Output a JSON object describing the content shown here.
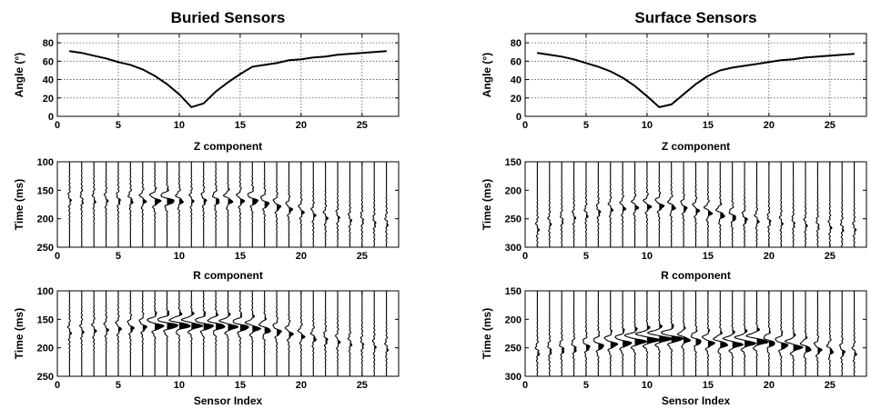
{
  "chart_data": [
    {
      "type": "line",
      "title": "Buried Sensors",
      "ylabel": "Angle (°)",
      "xlim": [
        0,
        28
      ],
      "ylim": [
        0,
        90
      ],
      "xticks": [
        0,
        5,
        10,
        15,
        20,
        25
      ],
      "yticks": [
        0,
        20,
        40,
        60,
        80
      ],
      "grid": true,
      "x": [
        1,
        2,
        3,
        4,
        5,
        6,
        7,
        8,
        9,
        10,
        11,
        12,
        13,
        14,
        15,
        16,
        17,
        18,
        19,
        20,
        21,
        22,
        23,
        24,
        25,
        26,
        27
      ],
      "y": [
        71,
        69,
        66,
        63,
        59,
        56,
        51,
        44,
        35,
        24,
        10,
        14,
        27,
        37,
        46,
        54,
        56,
        58,
        61,
        62,
        64,
        65,
        67,
        68,
        69,
        70,
        71
      ]
    },
    {
      "type": "line",
      "title": "Surface Sensors",
      "ylabel": "Angle (°)",
      "xlim": [
        0,
        28
      ],
      "ylim": [
        0,
        90
      ],
      "xticks": [
        0,
        5,
        10,
        15,
        20,
        25
      ],
      "yticks": [
        0,
        20,
        40,
        60,
        80
      ],
      "grid": true,
      "x": [
        1,
        2,
        3,
        4,
        5,
        6,
        7,
        8,
        9,
        10,
        11,
        12,
        13,
        14,
        15,
        16,
        17,
        18,
        19,
        20,
        21,
        22,
        23,
        24,
        25,
        26,
        27
      ],
      "y": [
        69,
        67,
        65,
        62,
        58,
        54,
        49,
        42,
        33,
        22,
        10,
        13,
        24,
        35,
        44,
        50,
        53,
        55,
        57,
        59,
        61,
        62,
        64,
        65,
        66,
        67,
        68
      ]
    },
    {
      "type": "wiggle",
      "title": "Z component",
      "ylabel": "Time (ms)",
      "xlim": [
        0,
        28
      ],
      "ylim": [
        100,
        250
      ],
      "xticks": [
        0,
        5,
        10,
        15,
        20,
        25
      ],
      "yticks": [
        100,
        150,
        200,
        250
      ],
      "traces": [
        1,
        2,
        3,
        4,
        5,
        6,
        7,
        8,
        9,
        10,
        11,
        12,
        13,
        14,
        15,
        16,
        17,
        18,
        19,
        20,
        21,
        22,
        23,
        24,
        25,
        26,
        27
      ],
      "event_time": [
        165,
        165,
        165,
        165,
        165,
        165,
        165,
        165,
        165,
        165,
        165,
        165,
        165,
        165,
        165,
        165,
        170,
        175,
        180,
        185,
        190,
        195,
        195,
        200,
        200,
        205,
        205
      ],
      "amplitude": [
        0.1,
        0.1,
        0.1,
        0.12,
        0.15,
        0.18,
        0.25,
        0.45,
        0.6,
        0.3,
        0.15,
        0.2,
        0.3,
        0.35,
        0.3,
        0.45,
        0.35,
        0.3,
        0.25,
        0.2,
        0.15,
        0.15,
        0.12,
        0.1,
        0.1,
        0.1,
        0.1
      ]
    },
    {
      "type": "wiggle",
      "title": "Z component",
      "ylabel": "Time (ms)",
      "xlim": [
        0,
        28
      ],
      "ylim": [
        150,
        300
      ],
      "xticks": [
        0,
        5,
        10,
        15,
        20,
        25
      ],
      "yticks": [
        150,
        200,
        250,
        300
      ],
      "traces": [
        1,
        2,
        3,
        4,
        5,
        6,
        7,
        8,
        9,
        10,
        11,
        12,
        13,
        14,
        15,
        16,
        17,
        18,
        19,
        20,
        21,
        22,
        23,
        24,
        25,
        26,
        27
      ],
      "event_time": [
        265,
        255,
        250,
        245,
        240,
        235,
        230,
        228,
        226,
        225,
        224,
        226,
        228,
        232,
        236,
        240,
        244,
        248,
        250,
        252,
        254,
        256,
        258,
        260,
        262,
        264,
        266
      ],
      "amplitude": [
        0.1,
        0.1,
        0.1,
        0.1,
        0.12,
        0.15,
        0.15,
        0.2,
        0.25,
        0.3,
        0.35,
        0.3,
        0.25,
        0.25,
        0.3,
        0.35,
        0.3,
        0.2,
        0.15,
        0.12,
        0.1,
        0.1,
        0.1,
        0.1,
        0.1,
        0.1,
        0.1
      ]
    },
    {
      "type": "wiggle",
      "title": "R component",
      "ylabel": "Time (ms)",
      "xlabel": "Sensor Index",
      "xlim": [
        0,
        28
      ],
      "ylim": [
        100,
        250
      ],
      "xticks": [
        0,
        5,
        10,
        15,
        20,
        25
      ],
      "yticks": [
        100,
        150,
        200,
        250
      ],
      "traces": [
        1,
        2,
        3,
        4,
        5,
        6,
        7,
        8,
        9,
        10,
        11,
        12,
        13,
        14,
        15,
        16,
        17,
        18,
        19,
        20,
        21,
        22,
        23,
        24,
        25,
        26,
        27
      ],
      "event_time": [
        170,
        168,
        166,
        165,
        163,
        162,
        160,
        158,
        157,
        157,
        157,
        158,
        158,
        159,
        160,
        162,
        165,
        168,
        172,
        176,
        180,
        183,
        186,
        189,
        192,
        195,
        198
      ],
      "amplitude": [
        0.1,
        0.12,
        0.15,
        0.15,
        0.2,
        0.25,
        0.3,
        0.7,
        0.9,
        0.9,
        0.85,
        0.8,
        0.75,
        0.75,
        0.7,
        0.6,
        0.5,
        0.35,
        0.3,
        0.25,
        0.2,
        0.15,
        0.15,
        0.12,
        0.1,
        0.1,
        0.1
      ]
    },
    {
      "type": "wiggle",
      "title": "R component",
      "ylabel": "Time (ms)",
      "xlabel": "Sensor Index",
      "xlim": [
        0,
        28
      ],
      "ylim": [
        150,
        300
      ],
      "xticks": [
        0,
        5,
        10,
        15,
        20,
        25
      ],
      "yticks": [
        150,
        200,
        250,
        300
      ],
      "traces": [
        1,
        2,
        3,
        4,
        5,
        6,
        7,
        8,
        9,
        10,
        11,
        12,
        13,
        14,
        15,
        16,
        17,
        18,
        19,
        20,
        21,
        22,
        23,
        24,
        25,
        26,
        27
      ],
      "event_time": [
        255,
        252,
        250,
        248,
        245,
        243,
        240,
        238,
        235,
        232,
        230,
        230,
        232,
        235,
        238,
        240,
        240,
        238,
        235,
        238,
        242,
        245,
        248,
        250,
        252,
        254,
        256
      ],
      "amplitude": [
        0.15,
        0.15,
        0.2,
        0.2,
        0.3,
        0.45,
        0.55,
        0.7,
        0.9,
        1.0,
        1.0,
        0.95,
        0.5,
        0.45,
        0.5,
        0.6,
        0.8,
        0.85,
        0.9,
        0.5,
        0.55,
        0.7,
        0.45,
        0.3,
        0.25,
        0.2,
        0.15
      ]
    }
  ]
}
